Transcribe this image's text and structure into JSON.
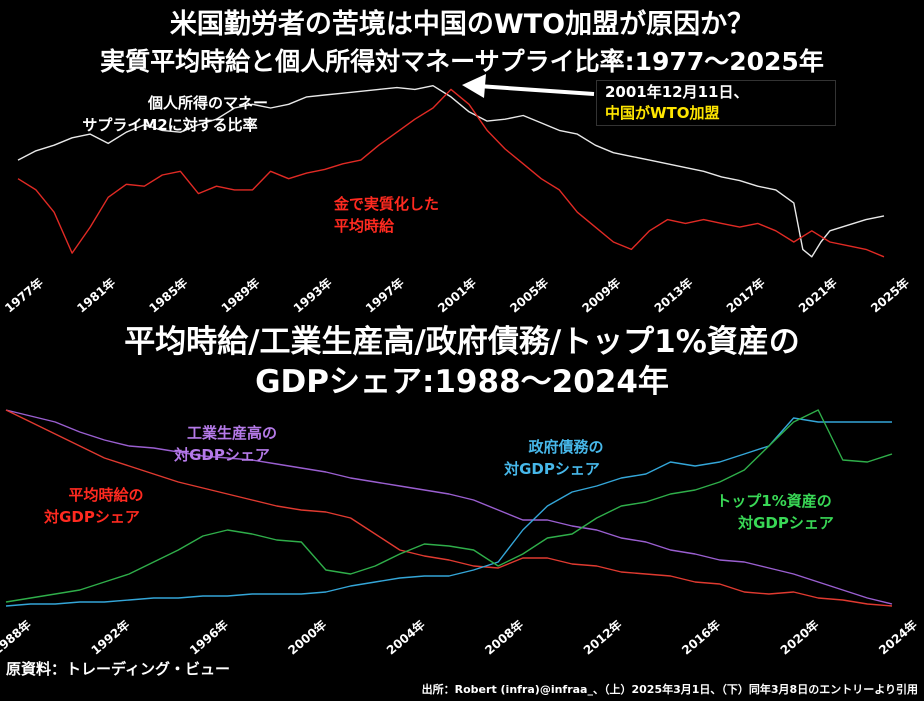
{
  "titles": {
    "line1": "米国勤労者の苦境は中国のWTO加盟が原因か？",
    "line2": "実質平均時給と個人所得対マネーサプライ比率:1977～2025年",
    "line3": "平均時給/工業生産高/政府債務/トップ1%資産の",
    "line4": "GDPシェア:1988～2024年"
  },
  "annotation": {
    "line1": "2001年12月11日、",
    "line2": "中国がWTO加盟"
  },
  "source": "原資料：トレーディング・ビュー",
  "credit": "出所：Robert (infra)@infraa_、（上）2025年3月1日、（下）同年3月8日のエントリーより引用",
  "colors": {
    "white": "#e8e8e8",
    "red": "#e02a24",
    "purple": "#9a5fd0",
    "blue": "#34a6d8",
    "green": "#2fae4a",
    "red2": "#e03a30",
    "label_red": "#ff2a20",
    "label_purple": "#b57ae8",
    "label_blue": "#47b8ea",
    "label_green": "#39d856",
    "label_yellow": "#ffe600"
  },
  "chart_data": [
    {
      "type": "line",
      "x_ticks": [
        "1977年",
        "1981年",
        "1985年",
        "1989年",
        "1993年",
        "1997年",
        "2001年",
        "2005年",
        "2009年",
        "2013年",
        "2017年",
        "2021年",
        "2025年"
      ],
      "xlim": [
        1977,
        2025
      ],
      "ylim": [
        0,
        100
      ],
      "series": [
        {
          "name": "個人所得のマネーサプライM2に対する比率",
          "label_lines": [
            "個人所得のマネー",
            "サプライM2に対する比率"
          ],
          "color": "#e8e8e8",
          "x": [
            1977,
            1978,
            1979,
            1980,
            1981,
            1982,
            1983,
            1984,
            1985,
            1986,
            1987,
            1988,
            1989,
            1990,
            1991,
            1992,
            1993,
            1994,
            1995,
            1996,
            1997,
            1998,
            1999,
            2000,
            2001,
            2002,
            2003,
            2004,
            2005,
            2006,
            2007,
            2008,
            2009,
            2010,
            2011,
            2012,
            2013,
            2014,
            2015,
            2016,
            2017,
            2018,
            2019,
            2020,
            2020.5,
            2021,
            2021.5,
            2022,
            2023,
            2024,
            2025
          ],
          "y": [
            58,
            63,
            66,
            70,
            72,
            67,
            73,
            77,
            74,
            73,
            77,
            80,
            86,
            88,
            86,
            88,
            92,
            93,
            94,
            95,
            96,
            97,
            96,
            98,
            92,
            84,
            79,
            80,
            82,
            78,
            74,
            72,
            66,
            62,
            60,
            58,
            56,
            54,
            52,
            49,
            47,
            44,
            42,
            35,
            10,
            6,
            14,
            20,
            23,
            26,
            28
          ]
        },
        {
          "name": "金で実質化した平均時給",
          "label_lines": [
            "金で実質化した",
            "平均時給"
          ],
          "color": "#e02a24",
          "x": [
            1977,
            1978,
            1979,
            1980,
            1981,
            1982,
            1983,
            1984,
            1985,
            1986,
            1987,
            1988,
            1989,
            1990,
            1991,
            1992,
            1993,
            1994,
            1995,
            1996,
            1997,
            1998,
            1999,
            2000,
            2001,
            2002,
            2003,
            2004,
            2005,
            2006,
            2007,
            2008,
            2009,
            2010,
            2011,
            2012,
            2013,
            2014,
            2015,
            2016,
            2017,
            2018,
            2019,
            2020,
            2021,
            2022,
            2023,
            2024,
            2025
          ],
          "y": [
            48,
            42,
            30,
            8,
            22,
            38,
            45,
            44,
            50,
            52,
            40,
            44,
            42,
            42,
            52,
            48,
            51,
            53,
            56,
            58,
            66,
            73,
            80,
            86,
            96,
            88,
            74,
            64,
            56,
            48,
            42,
            30,
            22,
            14,
            10,
            20,
            26,
            24,
            26,
            24,
            22,
            24,
            20,
            14,
            20,
            14,
            12,
            10,
            6
          ]
        }
      ]
    },
    {
      "type": "line",
      "x_ticks": [
        "1988年",
        "1992年",
        "1996年",
        "2000年",
        "2004年",
        "2008年",
        "2012年",
        "2016年",
        "2020年",
        "2024年"
      ],
      "xlim": [
        1988,
        2024
      ],
      "ylim": [
        0,
        100
      ],
      "series": [
        {
          "name": "工業生産高の対GDPシェア",
          "label_lines": [
            "工業生産高の",
            "対GDPシェア"
          ],
          "color": "#9a5fd0",
          "x": [
            1988,
            1989,
            1990,
            1991,
            1992,
            1993,
            1994,
            1995,
            1996,
            1997,
            1998,
            1999,
            2000,
            2001,
            2002,
            2003,
            2004,
            2005,
            2006,
            2007,
            2008,
            2009,
            2010,
            2011,
            2012,
            2013,
            2014,
            2015,
            2016,
            2017,
            2018,
            2019,
            2020,
            2021,
            2022,
            2023,
            2024
          ],
          "y": [
            100,
            97,
            94,
            89,
            85,
            82,
            81,
            79,
            77,
            76,
            75,
            73,
            71,
            69,
            66,
            64,
            62,
            60,
            58,
            55,
            50,
            45,
            45,
            42,
            40,
            36,
            34,
            30,
            28,
            25,
            24,
            21,
            18,
            14,
            10,
            6,
            3
          ]
        },
        {
          "name": "平均時給の対GDPシェア",
          "label_lines": [
            "平均時給の",
            "対GDPシェア"
          ],
          "color": "#e03a30",
          "x": [
            1988,
            1989,
            1990,
            1991,
            1992,
            1993,
            1994,
            1995,
            1996,
            1997,
            1998,
            1999,
            2000,
            2001,
            2002,
            2003,
            2004,
            2005,
            2006,
            2007,
            2008,
            2009,
            2010,
            2011,
            2012,
            2013,
            2014,
            2015,
            2016,
            2017,
            2018,
            2019,
            2020,
            2021,
            2022,
            2023,
            2024
          ],
          "y": [
            100,
            94,
            88,
            82,
            76,
            72,
            68,
            64,
            61,
            58,
            55,
            52,
            50,
            49,
            46,
            38,
            30,
            27,
            25,
            22,
            21,
            26,
            26,
            23,
            22,
            19,
            18,
            17,
            14,
            13,
            9,
            8,
            9,
            6,
            5,
            3,
            2
          ]
        },
        {
          "name": "政府債務の対GDPシェア",
          "label_lines": [
            "政府債務の",
            "対GDPシェア"
          ],
          "color": "#34a6d8",
          "x": [
            1988,
            1989,
            1990,
            1991,
            1992,
            1993,
            1994,
            1995,
            1996,
            1997,
            1998,
            1999,
            2000,
            2001,
            2002,
            2003,
            2004,
            2005,
            2006,
            2007,
            2008,
            2009,
            2010,
            2011,
            2012,
            2013,
            2014,
            2015,
            2016,
            2017,
            2018,
            2019,
            2020,
            2021,
            2022,
            2023,
            2024
          ],
          "y": [
            2,
            3,
            3,
            4,
            4,
            5,
            6,
            6,
            7,
            7,
            8,
            8,
            8,
            9,
            12,
            14,
            16,
            17,
            17,
            20,
            24,
            40,
            52,
            59,
            62,
            66,
            68,
            74,
            72,
            74,
            78,
            82,
            96,
            94,
            94,
            94,
            94
          ]
        },
        {
          "name": "トップ1%資産の対GDPシェア",
          "label_lines": [
            "トップ1%資産の",
            "対GDPシェア"
          ],
          "color": "#2fae4a",
          "x": [
            1988,
            1989,
            1990,
            1991,
            1992,
            1993,
            1994,
            1995,
            1996,
            1997,
            1998,
            1999,
            2000,
            2001,
            2002,
            2003,
            2004,
            2005,
            2006,
            2007,
            2008,
            2009,
            2010,
            2011,
            2012,
            2013,
            2014,
            2015,
            2016,
            2017,
            2018,
            2019,
            2020,
            2021,
            2022,
            2023,
            2024
          ],
          "y": [
            4,
            6,
            8,
            10,
            14,
            18,
            24,
            30,
            37,
            40,
            38,
            35,
            34,
            20,
            18,
            22,
            28,
            33,
            32,
            30,
            22,
            28,
            36,
            38,
            46,
            52,
            54,
            58,
            60,
            64,
            70,
            82,
            94,
            100,
            75,
            74,
            78
          ]
        }
      ]
    }
  ]
}
